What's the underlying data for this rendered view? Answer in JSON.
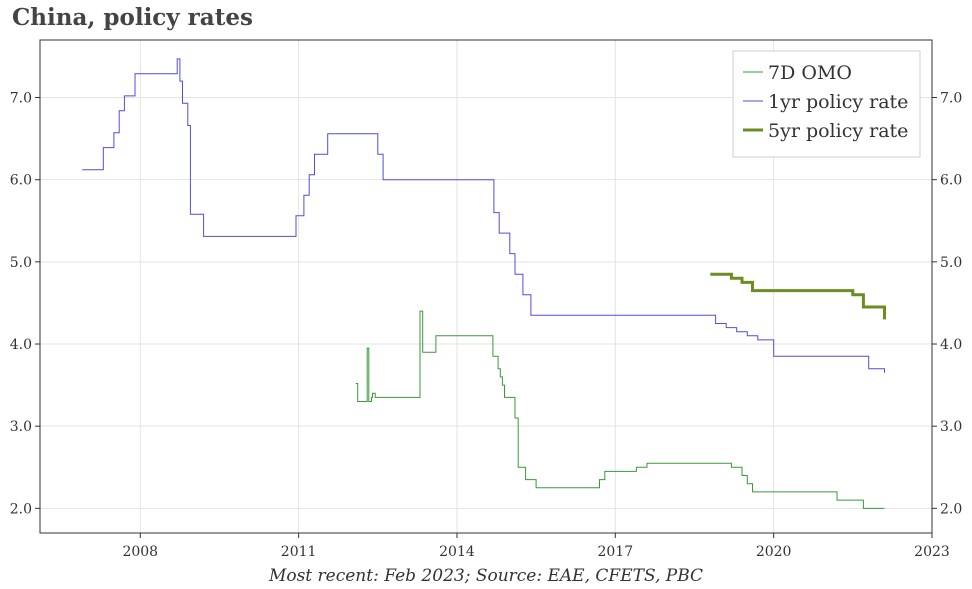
{
  "title": "China, policy rates",
  "footer": "Most recent: Feb 2023; Source: EAE, CFETS, PBC",
  "chart_data": {
    "type": "line",
    "title": "China, policy rates",
    "xlabel": "",
    "ylabel": "",
    "xlim": [
      2006.1,
      2023.0
    ],
    "ylim": [
      1.7,
      7.7
    ],
    "x_ticks": [
      2008,
      2011,
      2014,
      2017,
      2020,
      2023
    ],
    "y_ticks": [
      2.0,
      3.0,
      4.0,
      5.0,
      6.0,
      7.0
    ],
    "y_tick_labels": [
      "2.0",
      "3.0",
      "4.0",
      "5.0",
      "6.0",
      "7.0"
    ],
    "grid": true,
    "legend_position": "top-right",
    "series": [
      {
        "name": "7D OMO",
        "color": "#3a9a3a",
        "step": true,
        "x": [
          2012.08,
          2012.12,
          2012.3,
          2012.3,
          2012.33,
          2012.38,
          2012.4,
          2012.45,
          2012.5,
          2013.3,
          2013.35,
          2013.37,
          2013.42,
          2013.6,
          2013.72,
          2014.5,
          2014.68,
          2014.78,
          2014.82,
          2014.86,
          2014.9,
          2015.0,
          2015.1,
          2015.16,
          2015.2,
          2015.3,
          2015.5,
          2016.7,
          2016.8,
          2017.4,
          2017.6,
          2019.2,
          2019.4,
          2019.5,
          2019.6,
          2020.8,
          2021.2,
          2021.7,
          2022.1
        ],
        "values": [
          3.52,
          3.3,
          3.35,
          3.95,
          3.3,
          3.35,
          3.4,
          3.35,
          3.35,
          4.4,
          3.9,
          3.9,
          3.9,
          4.1,
          4.1,
          4.1,
          3.85,
          3.7,
          3.6,
          3.5,
          3.35,
          3.35,
          3.1,
          2.5,
          2.5,
          2.35,
          2.25,
          2.35,
          2.45,
          2.5,
          2.55,
          2.5,
          2.4,
          2.3,
          2.2,
          2.2,
          2.1,
          2.0,
          2.0
        ]
      },
      {
        "name": "1yr policy rate",
        "color": "#4f4fdd",
        "step": true,
        "x": [
          2006.9,
          2007.1,
          2007.3,
          2007.5,
          2007.6,
          2007.7,
          2007.9,
          2008.7,
          2008.75,
          2008.8,
          2008.9,
          2008.95,
          2009.2,
          2010.8,
          2010.95,
          2011.1,
          2011.2,
          2011.3,
          2011.55,
          2012.4,
          2012.5,
          2012.6,
          2014.5,
          2014.7,
          2014.8,
          2015.0,
          2015.1,
          2015.25,
          2015.4,
          2018.8,
          2018.9,
          2019.1,
          2019.3,
          2019.5,
          2019.7,
          2020.0,
          2021.2,
          2021.8,
          2022.1
        ],
        "values": [
          6.12,
          6.12,
          6.39,
          6.57,
          6.84,
          7.02,
          7.29,
          7.47,
          7.2,
          6.93,
          6.66,
          5.58,
          5.31,
          5.31,
          5.56,
          5.81,
          6.06,
          6.31,
          6.56,
          6.56,
          6.31,
          6.0,
          6.0,
          5.6,
          5.35,
          5.1,
          4.85,
          4.6,
          4.35,
          4.35,
          4.25,
          4.2,
          4.15,
          4.1,
          4.05,
          3.85,
          3.85,
          3.7,
          3.65
        ]
      },
      {
        "name": "5yr policy rate",
        "color": "#6b8e23",
        "step": true,
        "x": [
          2018.8,
          2019.0,
          2019.2,
          2019.4,
          2019.6,
          2021.2,
          2021.5,
          2021.7,
          2022.1
        ],
        "values": [
          4.85,
          4.85,
          4.8,
          4.75,
          4.65,
          4.65,
          4.6,
          4.45,
          4.3
        ]
      }
    ]
  }
}
